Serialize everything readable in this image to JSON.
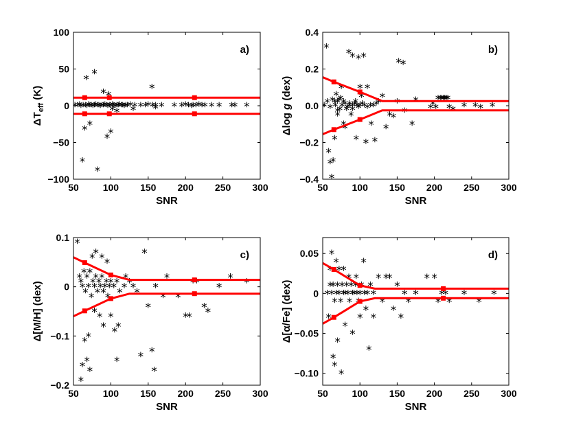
{
  "figure": {
    "lines_color": "#ff0000",
    "points_color": "#000000",
    "marker_glyph": "*"
  },
  "chart_data": [
    {
      "type": "scatter",
      "panel": "a)",
      "xlabel": "SNR",
      "ylabel_parts": [
        "ΔT",
        "eff",
        " (K)"
      ],
      "xlim": [
        50,
        300
      ],
      "ylim": [
        -100,
        100
      ],
      "xticks": [
        50,
        100,
        150,
        200,
        250,
        300
      ],
      "yticks": [
        -100,
        -50,
        0,
        50,
        100
      ],
      "ytick_labels": [
        "−100",
        "−50",
        "0",
        "50",
        "100"
      ],
      "envelope_upper": [
        [
          50,
          11
        ],
        [
          300,
          11
        ]
      ],
      "envelope_lower": [
        [
          50,
          -11
        ],
        [
          300,
          -11
        ]
      ],
      "envelope_markers": [
        [
          65,
          11
        ],
        [
          98,
          11
        ],
        [
          212,
          11
        ],
        [
          65,
          -11
        ],
        [
          98,
          -11
        ],
        [
          212,
          -11
        ]
      ],
      "points": [
        [
          62,
          -75
        ],
        [
          65,
          -32
        ],
        [
          67,
          37
        ],
        [
          72,
          -25
        ],
        [
          78,
          45
        ],
        [
          82,
          -88
        ],
        [
          90,
          18
        ],
        [
          95,
          -43
        ],
        [
          97,
          15
        ],
        [
          100,
          -36
        ],
        [
          102,
          -5
        ],
        [
          108,
          -8
        ],
        [
          130,
          -5
        ],
        [
          155,
          25
        ],
        [
          160,
          -3
        ],
        [
          52,
          0
        ],
        [
          56,
          0
        ],
        [
          58,
          1
        ],
        [
          60,
          -1
        ],
        [
          63,
          0
        ],
        [
          66,
          0
        ],
        [
          68,
          -1
        ],
        [
          70,
          1
        ],
        [
          72,
          0
        ],
        [
          74,
          0
        ],
        [
          76,
          -1
        ],
        [
          78,
          0
        ],
        [
          80,
          1
        ],
        [
          82,
          0
        ],
        [
          84,
          0
        ],
        [
          86,
          -1
        ],
        [
          88,
          0
        ],
        [
          90,
          0
        ],
        [
          92,
          1
        ],
        [
          94,
          0
        ],
        [
          96,
          -1
        ],
        [
          98,
          0
        ],
        [
          100,
          0
        ],
        [
          102,
          1
        ],
        [
          104,
          0
        ],
        [
          106,
          -1
        ],
        [
          108,
          0
        ],
        [
          110,
          0
        ],
        [
          112,
          1
        ],
        [
          114,
          0
        ],
        [
          116,
          0
        ],
        [
          118,
          -1
        ],
        [
          120,
          0
        ],
        [
          122,
          0
        ],
        [
          126,
          1
        ],
        [
          132,
          0
        ],
        [
          140,
          0
        ],
        [
          146,
          0
        ],
        [
          150,
          1
        ],
        [
          156,
          0
        ],
        [
          160,
          0
        ],
        [
          168,
          0
        ],
        [
          185,
          0
        ],
        [
          195,
          0
        ],
        [
          200,
          1
        ],
        [
          204,
          0
        ],
        [
          208,
          -1
        ],
        [
          210,
          0
        ],
        [
          214,
          0
        ],
        [
          218,
          1
        ],
        [
          222,
          0
        ],
        [
          226,
          0
        ],
        [
          235,
          0
        ],
        [
          245,
          0
        ],
        [
          262,
          0
        ],
        [
          266,
          0
        ],
        [
          282,
          0
        ]
      ]
    },
    {
      "type": "scatter",
      "panel": "b)",
      "xlabel": "SNR",
      "ylabel_parts": [
        "Δlog ",
        "g",
        " (dex)"
      ],
      "xlim": [
        50,
        300
      ],
      "ylim": [
        -0.4,
        0.4
      ],
      "xticks": [
        50,
        100,
        150,
        200,
        250,
        300
      ],
      "yticks": [
        -0.4,
        -0.2,
        0,
        0.2,
        0.4
      ],
      "ytick_labels": [
        "−0.4",
        "−0.2",
        "0.0",
        "0.2",
        "0.4"
      ],
      "envelope_upper": [
        [
          50,
          0.155
        ],
        [
          65,
          0.13
        ],
        [
          100,
          0.075
        ],
        [
          130,
          0.025
        ],
        [
          300,
          0.025
        ]
      ],
      "envelope_lower": [
        [
          50,
          -0.155
        ],
        [
          65,
          -0.13
        ],
        [
          100,
          -0.075
        ],
        [
          130,
          -0.025
        ],
        [
          300,
          -0.025
        ]
      ],
      "envelope_markers": [
        [
          65,
          0.13
        ],
        [
          100,
          0.075
        ],
        [
          65,
          -0.13
        ],
        [
          100,
          -0.075
        ]
      ],
      "points": [
        [
          55,
          0.32
        ],
        [
          58,
          -0.25
        ],
        [
          60,
          -0.31
        ],
        [
          62,
          -0.39
        ],
        [
          64,
          -0.3
        ],
        [
          66,
          -0.18
        ],
        [
          68,
          0.06
        ],
        [
          70,
          -0.05
        ],
        [
          72,
          0.03
        ],
        [
          75,
          0.1
        ],
        [
          78,
          -0.1
        ],
        [
          80,
          -0.12
        ],
        [
          85,
          0.29
        ],
        [
          88,
          -0.05
        ],
        [
          90,
          0.27
        ],
        [
          95,
          -0.18
        ],
        [
          98,
          0.26
        ],
        [
          100,
          0.1
        ],
        [
          102,
          0.05
        ],
        [
          105,
          0.27
        ],
        [
          108,
          -0.2
        ],
        [
          110,
          0.1
        ],
        [
          115,
          -0.1
        ],
        [
          120,
          -0.19
        ],
        [
          125,
          0.02
        ],
        [
          130,
          0.05
        ],
        [
          135,
          -0.12
        ],
        [
          140,
          -0.05
        ],
        [
          145,
          -0.06
        ],
        [
          150,
          0.02
        ],
        [
          152,
          0.24
        ],
        [
          158,
          0.23
        ],
        [
          160,
          -0.03
        ],
        [
          170,
          -0.1
        ],
        [
          175,
          0.03
        ],
        [
          195,
          -0.01
        ],
        [
          198,
          0.01
        ],
        [
          202,
          -0.01
        ],
        [
          205,
          0.04
        ],
        [
          208,
          0.04
        ],
        [
          210,
          0.04
        ],
        [
          212,
          0.04
        ],
        [
          214,
          0.04
        ],
        [
          216,
          0.04
        ],
        [
          218,
          0.04
        ],
        [
          220,
          -0.01
        ],
        [
          225,
          -0.02
        ],
        [
          240,
          0.0
        ],
        [
          255,
          0.0
        ],
        [
          262,
          -0.01
        ],
        [
          278,
          0.0
        ],
        [
          52,
          0.0
        ],
        [
          56,
          0.02
        ],
        [
          60,
          -0.01
        ],
        [
          63,
          0.03
        ],
        [
          67,
          0.0
        ],
        [
          70,
          0.02
        ],
        [
          73,
          -0.02
        ],
        [
          76,
          0.0
        ],
        [
          80,
          0.01
        ],
        [
          83,
          -0.01
        ],
        [
          86,
          0.0
        ],
        [
          90,
          0.0
        ],
        [
          93,
          0.01
        ],
        [
          96,
          0.0
        ],
        [
          100,
          0.0
        ],
        [
          103,
          0.01
        ],
        [
          106,
          0.0
        ],
        [
          110,
          -0.01
        ],
        [
          114,
          0.0
        ],
        [
          118,
          0.0
        ],
        [
          122,
          0.01
        ],
        [
          66,
          0.02
        ],
        [
          70,
          -0.03
        ],
        [
          74,
          0.04
        ],
        [
          78,
          0.02
        ],
        [
          82,
          -0.02
        ],
        [
          86,
          0.01
        ],
        [
          90,
          -0.02
        ],
        [
          94,
          0.02
        ],
        [
          98,
          -0.01
        ]
      ]
    },
    {
      "type": "scatter",
      "panel": "c)",
      "xlabel": "SNR",
      "ylabel_parts": [
        "Δ[M/H] (dex)"
      ],
      "xlim": [
        50,
        300
      ],
      "ylim": [
        -0.2,
        0.1
      ],
      "xticks": [
        50,
        100,
        150,
        200,
        250,
        300
      ],
      "yticks": [
        -0.2,
        -0.1,
        0,
        0.1
      ],
      "ytick_labels": [
        "−0.2",
        "−0.1",
        "0",
        "0.1"
      ],
      "envelope_upper": [
        [
          50,
          0.06
        ],
        [
          65,
          0.049
        ],
        [
          100,
          0.024
        ],
        [
          125,
          0.014
        ],
        [
          300,
          0.014
        ]
      ],
      "envelope_lower": [
        [
          50,
          -0.06
        ],
        [
          65,
          -0.049
        ],
        [
          100,
          -0.024
        ],
        [
          125,
          -0.014
        ],
        [
          300,
          -0.014
        ]
      ],
      "envelope_markers": [
        [
          65,
          0.049
        ],
        [
          100,
          0.024
        ],
        [
          212,
          0.014
        ],
        [
          65,
          -0.049
        ],
        [
          100,
          -0.024
        ],
        [
          212,
          -0.014
        ]
      ],
      "points": [
        [
          55,
          0.09
        ],
        [
          60,
          -0.19
        ],
        [
          62,
          -0.16
        ],
        [
          65,
          -0.11
        ],
        [
          68,
          -0.15
        ],
        [
          70,
          -0.1
        ],
        [
          72,
          -0.17
        ],
        [
          75,
          0.06
        ],
        [
          78,
          -0.05
        ],
        [
          80,
          0.07
        ],
        [
          85,
          -0.06
        ],
        [
          88,
          0.06
        ],
        [
          90,
          -0.08
        ],
        [
          95,
          0.05
        ],
        [
          100,
          -0.06
        ],
        [
          105,
          -0.09
        ],
        [
          108,
          -0.15
        ],
        [
          110,
          -0.08
        ],
        [
          120,
          0.02
        ],
        [
          135,
          -0.01
        ],
        [
          140,
          -0.14
        ],
        [
          145,
          0.07
        ],
        [
          150,
          -0.04
        ],
        [
          155,
          -0.13
        ],
        [
          158,
          -0.17
        ],
        [
          160,
          0.0
        ],
        [
          170,
          -0.02
        ],
        [
          175,
          0.02
        ],
        [
          190,
          -0.02
        ],
        [
          200,
          -0.06
        ],
        [
          205,
          -0.06
        ],
        [
          210,
          0.01
        ],
        [
          215,
          0.01
        ],
        [
          225,
          -0.04
        ],
        [
          230,
          -0.05
        ],
        [
          245,
          0.0
        ],
        [
          260,
          0.02
        ],
        [
          282,
          0.01
        ],
        [
          58,
          0.02
        ],
        [
          60,
          0.01
        ],
        [
          62,
          0.0
        ],
        [
          64,
          0.03
        ],
        [
          66,
          -0.01
        ],
        [
          68,
          0.02
        ],
        [
          70,
          0.0
        ],
        [
          72,
          0.03
        ],
        [
          74,
          -0.02
        ],
        [
          76,
          0.01
        ],
        [
          78,
          0.0
        ],
        [
          80,
          0.02
        ],
        [
          82,
          -0.01
        ],
        [
          84,
          0.01
        ],
        [
          86,
          0.0
        ],
        [
          88,
          0.02
        ],
        [
          90,
          -0.01
        ],
        [
          92,
          0.0
        ],
        [
          94,
          0.01
        ],
        [
          96,
          -0.02
        ],
        [
          98,
          0.0
        ],
        [
          100,
          0.01
        ],
        [
          104,
          0.0
        ],
        [
          108,
          0.01
        ],
        [
          112,
          -0.01
        ],
        [
          118,
          0.0
        ],
        [
          125,
          0.01
        ],
        [
          130,
          0.0
        ]
      ]
    },
    {
      "type": "scatter",
      "panel": "d)",
      "xlabel": "SNR",
      "ylabel_parts": [
        "Δ[α/Fe] (dex)"
      ],
      "xlim": [
        50,
        300
      ],
      "ylim": [
        -0.115,
        0.07
      ],
      "xticks": [
        50,
        100,
        150,
        200,
        250,
        300
      ],
      "yticks": [
        -0.1,
        -0.05,
        0,
        0.05
      ],
      "ytick_labels": [
        "−0.10",
        "−0.05",
        "0",
        "0.05"
      ],
      "envelope_upper": [
        [
          50,
          0.038
        ],
        [
          65,
          0.03
        ],
        [
          100,
          0.01
        ],
        [
          120,
          0.006
        ],
        [
          300,
          0.006
        ]
      ],
      "envelope_lower": [
        [
          50,
          -0.038
        ],
        [
          65,
          -0.03
        ],
        [
          100,
          -0.01
        ],
        [
          120,
          -0.006
        ],
        [
          300,
          -0.006
        ]
      ],
      "envelope_markers": [
        [
          65,
          0.03
        ],
        [
          100,
          0.01
        ],
        [
          212,
          0.006
        ],
        [
          65,
          -0.03
        ],
        [
          100,
          -0.01
        ],
        [
          212,
          -0.006
        ]
      ],
      "points": [
        [
          58,
          -0.03
        ],
        [
          60,
          0.03
        ],
        [
          62,
          0.05
        ],
        [
          64,
          -0.08
        ],
        [
          66,
          -0.09
        ],
        [
          68,
          0.04
        ],
        [
          70,
          -0.06
        ],
        [
          72,
          0.03
        ],
        [
          75,
          -0.1
        ],
        [
          78,
          0.03
        ],
        [
          80,
          -0.04
        ],
        [
          85,
          0.02
        ],
        [
          90,
          -0.05
        ],
        [
          95,
          0.02
        ],
        [
          100,
          -0.03
        ],
        [
          105,
          0.04
        ],
        [
          108,
          -0.02
        ],
        [
          112,
          -0.07
        ],
        [
          118,
          -0.03
        ],
        [
          125,
          0.02
        ],
        [
          130,
          -0.01
        ],
        [
          135,
          0.02
        ],
        [
          140,
          0.02
        ],
        [
          145,
          -0.02
        ],
        [
          150,
          0.01
        ],
        [
          155,
          -0.03
        ],
        [
          160,
          0.0
        ],
        [
          165,
          -0.01
        ],
        [
          175,
          0.0
        ],
        [
          190,
          0.02
        ],
        [
          200,
          0.02
        ],
        [
          205,
          -0.01
        ],
        [
          210,
          0.0
        ],
        [
          215,
          0.0
        ],
        [
          220,
          -0.01
        ],
        [
          240,
          0.0
        ],
        [
          260,
          -0.01
        ],
        [
          280,
          0.0
        ],
        [
          56,
          0.0
        ],
        [
          60,
          0.01
        ],
        [
          62,
          0.0
        ],
        [
          64,
          0.01
        ],
        [
          66,
          -0.01
        ],
        [
          68,
          0.0
        ],
        [
          70,
          0.01
        ],
        [
          72,
          0.0
        ],
        [
          74,
          -0.01
        ],
        [
          76,
          0.01
        ],
        [
          78,
          0.0
        ],
        [
          80,
          0.0
        ],
        [
          82,
          0.01
        ],
        [
          84,
          0.0
        ],
        [
          86,
          -0.01
        ],
        [
          88,
          0.01
        ],
        [
          90,
          0.0
        ],
        [
          92,
          0.0
        ],
        [
          94,
          0.01
        ],
        [
          96,
          0.0
        ],
        [
          98,
          -0.01
        ],
        [
          100,
          0.0
        ],
        [
          102,
          0.01
        ],
        [
          106,
          0.0
        ],
        [
          110,
          0.0
        ],
        [
          114,
          0.01
        ],
        [
          118,
          0.0
        ]
      ]
    }
  ]
}
